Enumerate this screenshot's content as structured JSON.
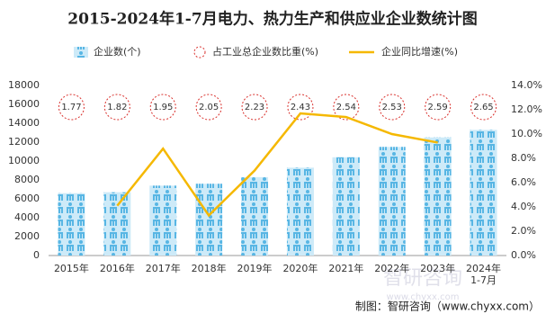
{
  "chart_data": {
    "type": "combo",
    "title": "2015-2024年1-7月电力、热力生产和供应业企业数统计图",
    "categories": [
      "2015年",
      "2016年",
      "2017年",
      "2018年",
      "2019年",
      "2020年",
      "2021年",
      "2022年",
      "2023年",
      "2024年1-7月"
    ],
    "series": [
      {
        "name": "企业数(个)",
        "type": "bar",
        "color": "#7ecbf0",
        "values": [
          6600,
          6700,
          7400,
          7600,
          8300,
          9300,
          10400,
          11500,
          12500,
          13300
        ]
      },
      {
        "name": "占工业总企业数比重(%)",
        "type": "label",
        "color": "#d9302c",
        "values": [
          1.77,
          1.82,
          1.95,
          2.05,
          2.23,
          2.43,
          2.54,
          2.53,
          2.59,
          2.65
        ]
      },
      {
        "name": "企业同比增速(%)",
        "type": "line",
        "axis": "y2",
        "color": "#f5b800",
        "values": [
          null,
          4.1,
          8.8,
          3.3,
          7.0,
          11.7,
          11.4,
          10.0,
          9.3,
          null
        ]
      }
    ],
    "ylim": [
      0,
      18000
    ],
    "yticks": [
      0,
      2000,
      4000,
      6000,
      8000,
      10000,
      12000,
      14000,
      16000,
      18000
    ],
    "y2lim": [
      0,
      14
    ],
    "y2ticks": [
      {
        "value": 0,
        "label": "0.0%"
      },
      {
        "value": 2,
        "label": "2.0%"
      },
      {
        "value": 4,
        "label": "4.0%"
      },
      {
        "value": 6,
        "label": "6.0%"
      },
      {
        "value": 8,
        "label": "8.0%"
      },
      {
        "value": 10,
        "label": "10.0%"
      },
      {
        "value": 12,
        "label": "12.0%"
      },
      {
        "value": 14,
        "label": "14.0%"
      }
    ],
    "source": "制图：智研咨询（www.chyxx.com）",
    "watermark": [
      "智研咨询",
      "www.chyxx.com"
    ]
  }
}
